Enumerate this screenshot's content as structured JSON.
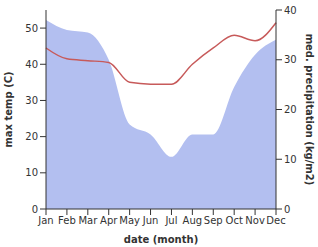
{
  "chart_data": {
    "type": "line",
    "categories": [
      "Jan",
      "Feb",
      "Mar",
      "Apr",
      "May",
      "Jun",
      "Jul",
      "Aug",
      "Sep",
      "Oct",
      "Nov",
      "Dec"
    ],
    "x_label": "date (month)",
    "y_label": "max temp (C)",
    "y2_label": "med. precipitation (kg/m2)",
    "ylim": [
      0,
      55
    ],
    "yticks": [
      0,
      10,
      20,
      30,
      40,
      50
    ],
    "y2lim": [
      0,
      40
    ],
    "y2ticks": [
      0,
      10,
      20,
      30,
      40
    ],
    "grid": false,
    "series": [
      {
        "name": "max temp",
        "type": "line",
        "color": "#c75a5a",
        "values": [
          44.5,
          41.5,
          41,
          40.5,
          35,
          34.5,
          34.5,
          40,
          44.5,
          48,
          46.5,
          51.5
        ]
      },
      {
        "name": "med. precipitation",
        "type": "area",
        "axis": "y2",
        "color": "#b3bff0",
        "values": [
          38,
          36,
          35.5,
          30,
          17,
          15,
          10.5,
          15,
          15,
          24.5,
          31,
          34
        ]
      }
    ]
  }
}
